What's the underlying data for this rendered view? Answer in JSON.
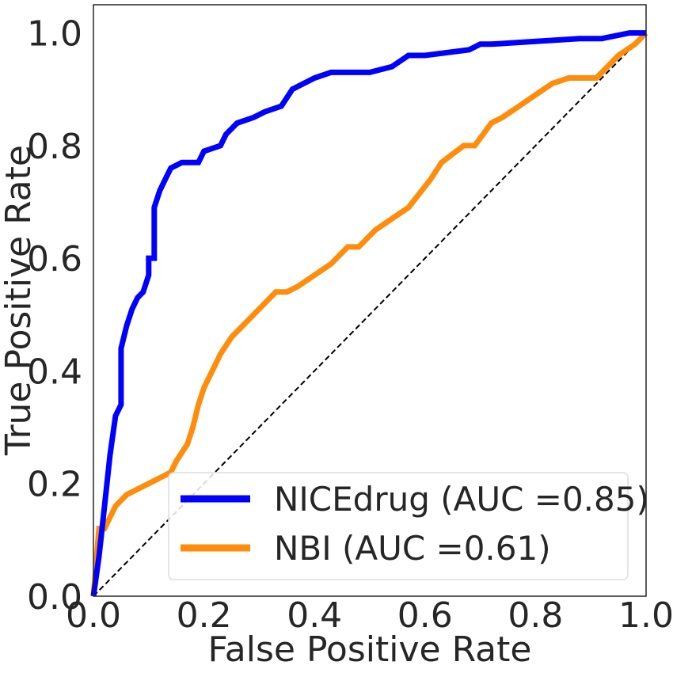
{
  "chart_data": {
    "type": "line",
    "xlabel": "False Positive Rate",
    "ylabel": "True Positive Rate",
    "xlim": [
      0.0,
      1.0
    ],
    "ylim": [
      0.0,
      1.05
    ],
    "x_ticks": [
      "0.0",
      "0.2",
      "0.4",
      "0.6",
      "0.8",
      "1.0"
    ],
    "y_ticks": [
      "0.0",
      "0.2",
      "0.4",
      "0.6",
      "0.8",
      "1.0"
    ],
    "grid": false,
    "legend_position": "lower-right",
    "series": [
      {
        "name": "NICEdrug (AUC =0.85)",
        "color": "#0000ff",
        "x": [
          0.0,
          0.01,
          0.02,
          0.03,
          0.04,
          0.05,
          0.05,
          0.06,
          0.07,
          0.08,
          0.09,
          0.1,
          0.1,
          0.11,
          0.11,
          0.12,
          0.13,
          0.14,
          0.16,
          0.19,
          0.2,
          0.23,
          0.24,
          0.26,
          0.29,
          0.31,
          0.34,
          0.36,
          0.38,
          0.4,
          0.43,
          0.5,
          0.54,
          0.57,
          0.6,
          0.68,
          0.7,
          0.72,
          0.88,
          0.92,
          0.97,
          1.0
        ],
        "y": [
          0.0,
          0.07,
          0.16,
          0.25,
          0.32,
          0.34,
          0.44,
          0.48,
          0.51,
          0.53,
          0.54,
          0.57,
          0.6,
          0.6,
          0.69,
          0.72,
          0.74,
          0.76,
          0.77,
          0.77,
          0.79,
          0.8,
          0.82,
          0.84,
          0.85,
          0.86,
          0.87,
          0.9,
          0.91,
          0.92,
          0.93,
          0.93,
          0.94,
          0.96,
          0.96,
          0.97,
          0.98,
          0.98,
          0.99,
          0.99,
          1.0,
          1.0
        ]
      },
      {
        "name": "NBI (AUC =0.61)",
        "color": "#ff8c0a",
        "x": [
          0.0,
          0.01,
          0.02,
          0.03,
          0.04,
          0.06,
          0.08,
          0.1,
          0.12,
          0.14,
          0.15,
          0.17,
          0.18,
          0.19,
          0.2,
          0.21,
          0.23,
          0.25,
          0.27,
          0.29,
          0.31,
          0.33,
          0.35,
          0.37,
          0.4,
          0.43,
          0.46,
          0.48,
          0.51,
          0.54,
          0.57,
          0.61,
          0.63,
          0.67,
          0.69,
          0.72,
          0.74,
          0.77,
          0.8,
          0.83,
          0.86,
          0.91,
          0.95,
          0.98,
          1.0
        ],
        "y": [
          0.0,
          0.12,
          0.12,
          0.14,
          0.16,
          0.18,
          0.19,
          0.2,
          0.21,
          0.22,
          0.24,
          0.27,
          0.3,
          0.34,
          0.37,
          0.39,
          0.43,
          0.46,
          0.48,
          0.5,
          0.52,
          0.54,
          0.54,
          0.55,
          0.57,
          0.59,
          0.62,
          0.62,
          0.65,
          0.67,
          0.69,
          0.74,
          0.77,
          0.8,
          0.8,
          0.84,
          0.85,
          0.87,
          0.89,
          0.91,
          0.92,
          0.92,
          0.96,
          0.98,
          1.0
        ]
      },
      {
        "name": "",
        "style": "dashed",
        "color": "#000000",
        "x": [
          0.0,
          1.0
        ],
        "y": [
          0.0,
          1.0
        ]
      }
    ]
  }
}
